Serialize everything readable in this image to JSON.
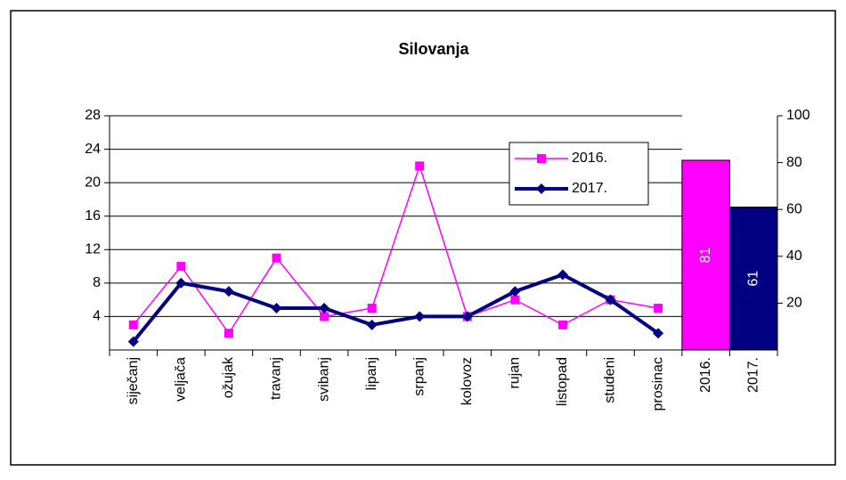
{
  "chart_data": {
    "type": "line",
    "title": "Silovanja",
    "categories": [
      "siječanj",
      "veljača",
      "ožujak",
      "travanj",
      "svibanj",
      "lipanj",
      "srpanj",
      "kolovoz",
      "rujan",
      "listopad",
      "studeni",
      "prosinac"
    ],
    "series": [
      {
        "name": "2016.",
        "color": "#ff00ff",
        "values": [
          3,
          10,
          2,
          11,
          4,
          5,
          22,
          4,
          6,
          3,
          6,
          5
        ]
      },
      {
        "name": "2017.",
        "color": "#000080",
        "values": [
          1,
          8,
          7,
          5,
          5,
          3,
          4,
          4,
          7,
          9,
          6,
          2
        ]
      }
    ],
    "bars": {
      "categories": [
        "2016.",
        "2017."
      ],
      "values": [
        81,
        61
      ],
      "colors": [
        "#ff00ff",
        "#000080"
      ],
      "axis": "y2"
    },
    "ylim": [
      0,
      28
    ],
    "yticks": [
      4,
      8,
      12,
      16,
      20,
      24,
      28
    ],
    "y2lim": [
      0,
      100
    ],
    "y2ticks": [
      20,
      40,
      60,
      80,
      100
    ],
    "grid": true,
    "legend": "upper right"
  }
}
